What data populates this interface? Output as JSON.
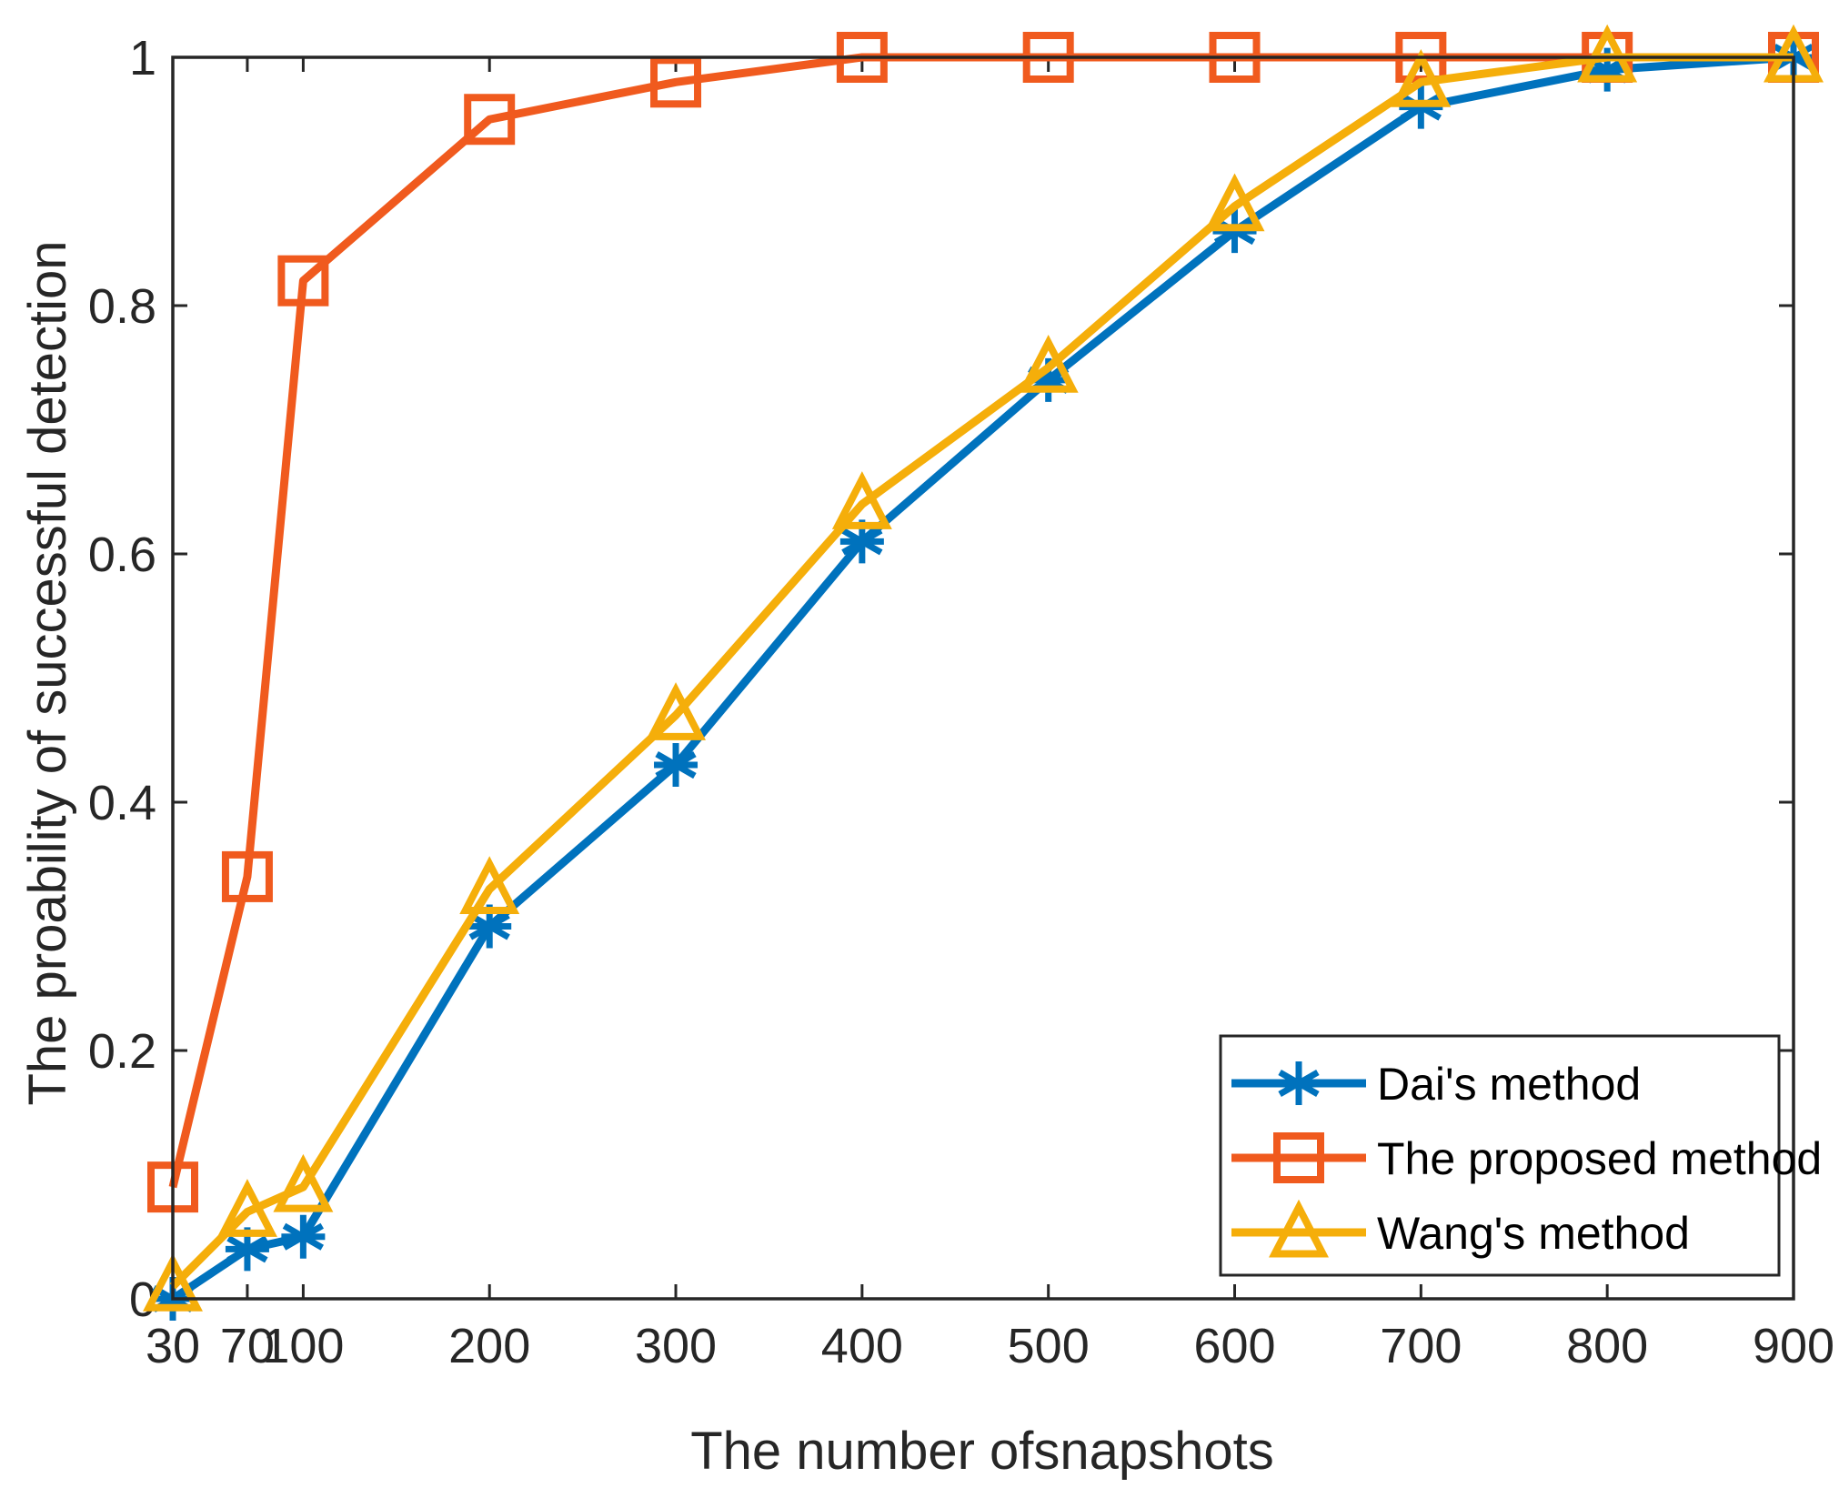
{
  "chart_data": {
    "type": "line",
    "title": "",
    "xlabel": "The number ofsnapshots",
    "ylabel": "The proability of successful detection",
    "x": [
      30,
      70,
      100,
      200,
      300,
      400,
      500,
      600,
      700,
      800,
      900
    ],
    "xticks": [
      30,
      70,
      100,
      200,
      300,
      400,
      500,
      600,
      700,
      800,
      900
    ],
    "xtick_labels": [
      "30",
      "70",
      "100",
      "200",
      "300",
      "400",
      "500",
      "600",
      "700",
      "800",
      "900"
    ],
    "xlim": [
      30,
      900
    ],
    "yticks": [
      0,
      0.2,
      0.4,
      0.6,
      0.8,
      1
    ],
    "ytick_labels": [
      "0",
      "0.2",
      "0.4",
      "0.6",
      "0.8",
      "1"
    ],
    "ylim": [
      0,
      1
    ],
    "grid": false,
    "legend_position": "bottom-right",
    "series": [
      {
        "name": "Dai's method",
        "marker": "asterisk",
        "color": "#0072BD",
        "values": [
          0.0,
          0.04,
          0.05,
          0.3,
          0.43,
          0.61,
          0.74,
          0.86,
          0.96,
          0.99,
          1.0
        ]
      },
      {
        "name": "The proposed method",
        "marker": "square",
        "color": "#F05A1E",
        "values": [
          0.09,
          0.34,
          0.82,
          0.95,
          0.98,
          1.0,
          1.0,
          1.0,
          1.0,
          1.0,
          1.0
        ]
      },
      {
        "name": "Wang's method",
        "marker": "triangle",
        "color": "#F5AE0A",
        "values": [
          0.01,
          0.07,
          0.09,
          0.33,
          0.47,
          0.64,
          0.75,
          0.88,
          0.98,
          1.0,
          1.0
        ]
      }
    ]
  }
}
